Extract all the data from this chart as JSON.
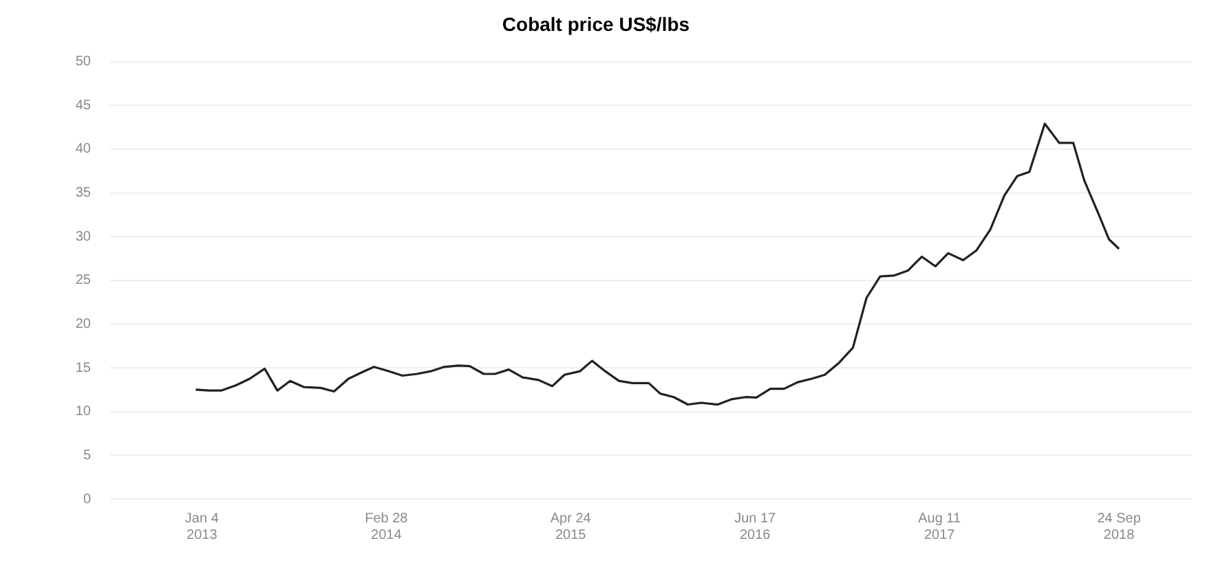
{
  "chart_data": {
    "type": "line",
    "title": "Cobalt price US$/lbs",
    "x": [
      "2012-12-21",
      "2013-01-20",
      "2013-02-17",
      "2013-03-23",
      "2013-04-23",
      "2013-05-27",
      "2013-06-25",
      "2013-07-24",
      "2013-08-24",
      "2013-10-02",
      "2013-11-01",
      "2013-12-04",
      "2014-01-04",
      "2014-01-31",
      "2014-03-03",
      "2014-04-06",
      "2014-05-09",
      "2014-06-09",
      "2014-07-10",
      "2014-08-11",
      "2014-09-06",
      "2014-10-08",
      "2014-11-03",
      "2014-12-04",
      "2015-01-05",
      "2015-02-10",
      "2015-03-13",
      "2015-04-10",
      "2015-05-15",
      "2015-06-12",
      "2015-07-12",
      "2015-08-12",
      "2015-09-12",
      "2015-10-19",
      "2015-11-14",
      "2015-12-15",
      "2016-01-16",
      "2016-02-16",
      "2016-03-24",
      "2016-04-24",
      "2016-05-26",
      "2016-06-20",
      "2016-07-22",
      "2016-08-22",
      "2016-09-22",
      "2016-10-24",
      "2016-11-23",
      "2016-12-26",
      "2017-01-26",
      "2017-02-26",
      "2017-03-29",
      "2017-04-30",
      "2017-05-31",
      "2017-07-02",
      "2017-08-02",
      "2017-08-31",
      "2017-10-04",
      "2017-11-03",
      "2017-12-05",
      "2018-01-06",
      "2018-02-04",
      "2018-03-04",
      "2018-04-08",
      "2018-05-11",
      "2018-06-12",
      "2018-07-07",
      "2018-08-10",
      "2018-09-01",
      "2018-09-24"
    ],
    "series": [
      {
        "color": "#222222",
        "values": [
          12.5,
          12.4,
          12.4,
          13.0,
          13.75,
          14.9,
          12.4,
          13.5,
          12.8,
          12.7,
          12.3,
          13.75,
          14.5,
          15.1,
          14.65,
          14.1,
          14.3,
          14.6,
          15.1,
          15.25,
          15.2,
          14.3,
          14.3,
          14.8,
          13.9,
          13.6,
          12.9,
          14.2,
          14.6,
          15.8,
          14.6,
          13.5,
          13.25,
          13.25,
          12.05,
          11.65,
          10.8,
          11.0,
          10.8,
          11.4,
          11.65,
          11.6,
          12.6,
          12.6,
          13.35,
          13.75,
          14.2,
          15.6,
          17.3,
          23.0,
          25.45,
          25.55,
          26.1,
          27.7,
          26.6,
          28.1,
          27.3,
          28.4,
          30.8,
          34.7,
          36.9,
          37.4,
          42.9,
          40.7,
          40.7,
          36.4,
          32.4,
          29.7,
          28.6
        ]
      }
    ],
    "xlim": [
      "2012-06-09",
      "2019-03-09"
    ],
    "xticks": [
      {
        "value": "2013-01-04",
        "label": "Jan 4 2013"
      },
      {
        "value": "2014-02-28",
        "label": "Feb 28 2014"
      },
      {
        "value": "2015-04-24",
        "label": "Apr 24 2015"
      },
      {
        "value": "2016-06-17",
        "label": "Jun 17 2016"
      },
      {
        "value": "2017-08-11",
        "label": "Aug 11 2017"
      },
      {
        "value": "2018-09-24",
        "label": "24 Sep 2018"
      }
    ],
    "ylim": [
      0,
      50
    ],
    "yticks": [
      0,
      5,
      10,
      15,
      20,
      25,
      30,
      35,
      40,
      45,
      50
    ],
    "grid": "y",
    "marker": "none",
    "line_style": "solid"
  }
}
